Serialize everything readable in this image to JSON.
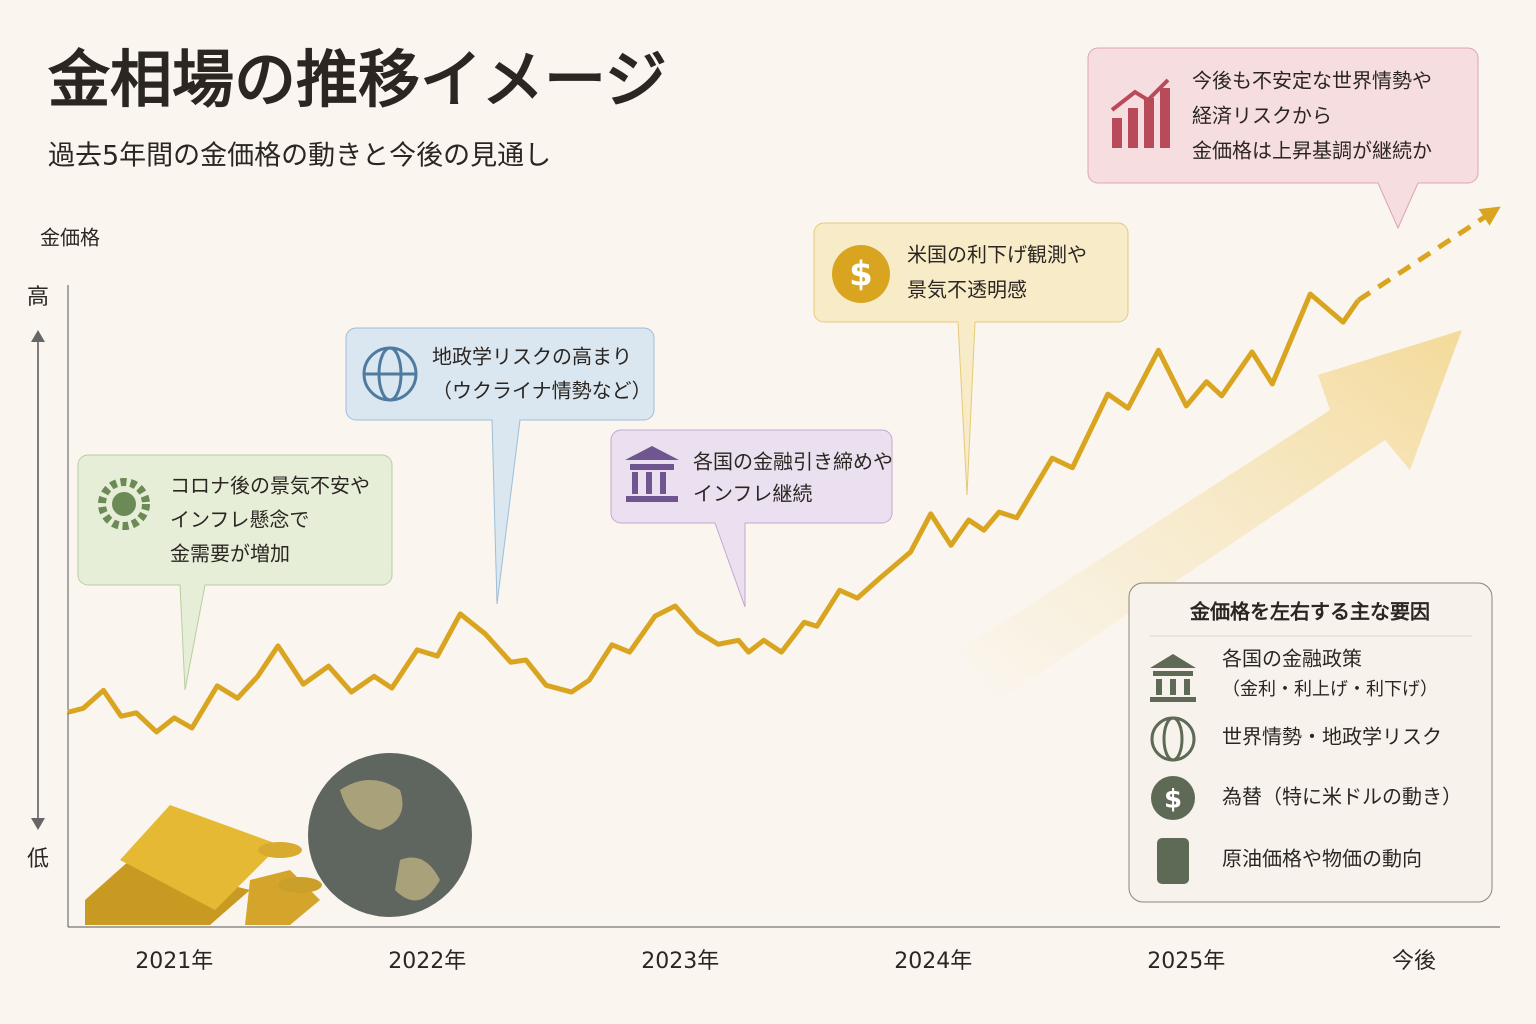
{
  "chart_data": {
    "type": "line",
    "title": "金相場の推移イメージ",
    "subtitle": "過去5年間の金価格の動きと今後の見通し",
    "y_label": "金価格",
    "xlim": [
      2020.58,
      2026.24
    ],
    "ylim": [
      -11.9,
      128.1
    ],
    "xticks": [
      {
        "value": 2021,
        "label": "2021年"
      },
      {
        "value": 2022,
        "label": "2022年"
      },
      {
        "value": 2023,
        "label": "2023年"
      },
      {
        "value": 2024,
        "label": "2024年"
      },
      {
        "value": 2025,
        "label": "2025年"
      },
      {
        "value": 2025.9,
        "label": "今後"
      }
    ],
    "yticks": [
      {
        "value": 100,
        "label": "高"
      },
      {
        "value": 0,
        "label": "低"
      }
    ],
    "series": [
      {
        "color": "#d9a520",
        "dashed": false,
        "x": [
          2020.58,
          2020.64,
          2020.72,
          2020.79,
          2020.85,
          2020.93,
          2021.0,
          2021.07,
          2021.17,
          2021.25,
          2021.33,
          2021.41,
          2021.51,
          2021.61,
          2021.7,
          2021.79,
          2021.86,
          2021.96,
          2022.04,
          2022.13,
          2022.23,
          2022.33,
          2022.39,
          2022.47,
          2022.57,
          2022.64,
          2022.73,
          2022.8,
          2022.9,
          2022.98,
          2023.07,
          2023.15,
          2023.23,
          2023.27,
          2023.33,
          2023.4,
          2023.49,
          2023.54,
          2023.63,
          2023.7,
          2023.79,
          2023.91,
          2023.99,
          2024.07,
          2024.14,
          2024.2,
          2024.26,
          2024.33,
          2024.47,
          2024.55,
          2024.69,
          2024.77,
          2024.89,
          2025.0,
          2025.08,
          2025.14,
          2025.26,
          2025.34,
          2025.49,
          2025.62,
          2025.68
        ],
        "values": [
          26.3,
          27.0,
          30.2,
          25.6,
          26.2,
          22.8,
          25.3,
          23.5,
          31.0,
          28.8,
          32.7,
          38.1,
          31.3,
          34.5,
          29.9,
          32.7,
          30.6,
          37.4,
          36.3,
          43.8,
          40.2,
          35.2,
          35.6,
          31.1,
          29.9,
          32.0,
          38.3,
          37.0,
          43.4,
          45.2,
          40.6,
          38.4,
          39.1,
          37.0,
          39.1,
          37.0,
          42.3,
          41.6,
          48.0,
          46.6,
          50.2,
          54.8,
          61.6,
          56.0,
          60.5,
          58.7,
          61.9,
          60.9,
          71.5,
          69.8,
          82.9,
          80.4,
          90.7,
          80.8,
          85.1,
          82.6,
          90.4,
          84.7,
          100.7,
          95.7,
          99.6
        ]
      },
      {
        "color": "#d9a520",
        "dashed": true,
        "x": [
          2025.68,
          2026.21
        ],
        "values": [
          99.6,
          115.3
        ]
      }
    ],
    "annotations": [
      {
        "lines": [
          "コロナ後の景気不安や",
          "インフレ懸念で",
          "金需要が増加"
        ]
      },
      {
        "lines": [
          "地政学リスクの高まり",
          "（ウクライナ情勢など）"
        ]
      },
      {
        "lines": [
          "各国の金融引き締めや",
          "インフレ継続"
        ]
      },
      {
        "lines": [
          "米国の利下げ観測や",
          "景気不透明感"
        ]
      },
      {
        "lines": [
          "今後も不安定な世界情勢や",
          "経済リスクから",
          "金価格は上昇基調が継続か"
        ]
      }
    ],
    "factors": {
      "title": "金価格を左右する主な要因",
      "items": [
        {
          "lines": [
            "各国の金融政策",
            "（金利・利上げ・利下げ）"
          ]
        },
        {
          "lines": [
            "世界情勢・地政学リスク"
          ]
        },
        {
          "lines": [
            "為替（特に米ドルの動き）"
          ]
        },
        {
          "lines": [
            "原油価格や物価の動向"
          ]
        }
      ]
    }
  }
}
